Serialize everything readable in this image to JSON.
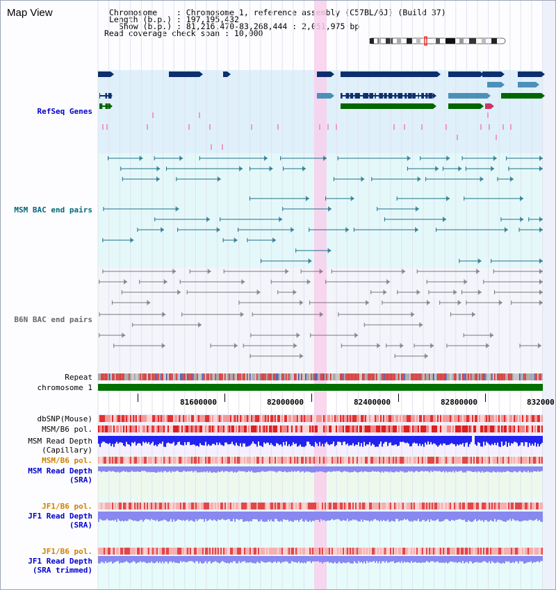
{
  "header": {
    "title": "Map View",
    "chromosome_line": "Chromosome    : Chromosome 1, reference assembly (C57BL/6J) (Build 37)",
    "length_line": "Length (b.p.) : 197,195,432",
    "show_line": "Show (b.p.) : 81,216,470-83,268,444 : 2,051,975 bp",
    "coverage_line": "Read coverage check span : 10,000"
  },
  "tracks": {
    "refseq": "RefSeq Genes",
    "msm_bac": "MSM BAC end pairs",
    "b6n_bac": "B6N BAC end pairs",
    "repeat": "Repeat",
    "chromosome": "chromosome 1",
    "dbsnp": "dbSNP(Mouse)",
    "msm_pol": "MSM/B6 pol.",
    "msm_depth_1": "MSM Read Depth",
    "msm_depth_2": "(Capillary)",
    "msm_pol_sra": "MSM/B6 pol.",
    "msm_sra_1": "MSM Read Depth",
    "msm_sra_2": "(SRA)",
    "jf1_pol_a": "JF1/B6 pol.",
    "jf1_depth_1": "JF1 Read Depth",
    "jf1_depth_2": "(SRA)",
    "jf1_pol_b": "JF1/B6 pol.",
    "jf1_trim_1": "JF1 Read Depth",
    "jf1_trim_2": "(SRA trimmed)"
  },
  "axis": {
    "ticks": [
      "81600000",
      "82000000",
      "82400000",
      "82800000",
      "832000"
    ]
  },
  "colors": {
    "highlight": "#f8d0ec",
    "refseq_bg": "#dff0fa",
    "bac_bg": "#e4f8fa",
    "gene_navy": "#0d2f6e",
    "gene_blue": "#4a90b8",
    "gene_green": "#006600",
    "msm_line": "#1d6f85",
    "b6n_line": "#777777",
    "repeat_red": "#cc2222",
    "chr_green": "#007000",
    "depth_blue": "#2222ee",
    "depth_lav": "#8888f0",
    "label_blue": "#0000cc",
    "label_teal": "#006677",
    "label_orange": "#d08000"
  }
}
